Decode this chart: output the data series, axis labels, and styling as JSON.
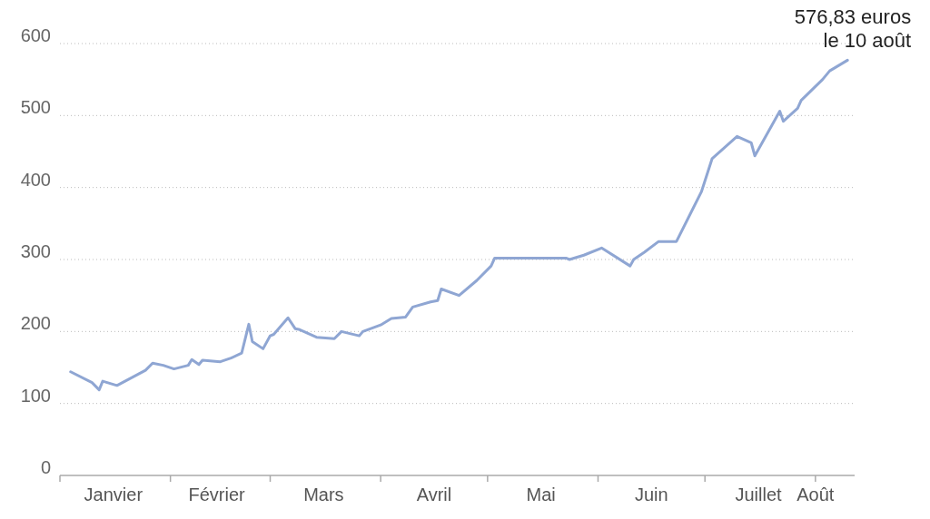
{
  "chart_data": {
    "type": "line",
    "x": [
      "--01-04",
      "--01-10",
      "--01-12",
      "--01-13",
      "--01-17",
      "--01-25",
      "--01-27",
      "--01-30",
      "--02-02",
      "--02-06",
      "--02-07",
      "--02-09",
      "--02-10",
      "--02-15",
      "--02-18",
      "--02-21",
      "--02-23",
      "--02-24",
      "--02-27",
      "--03-01",
      "--03-02",
      "--03-06",
      "--03-08",
      "--03-09",
      "--03-14",
      "--03-19",
      "--03-21",
      "--03-26",
      "--03-27",
      "--04-01",
      "--04-04",
      "--04-08",
      "--04-10",
      "--04-15",
      "--04-17",
      "--04-18",
      "--04-23",
      "--04-28",
      "--05-02",
      "--05-03",
      "--05-23",
      "--05-24",
      "--05-28",
      "--06-02",
      "--06-10",
      "--06-11",
      "--06-14",
      "--06-18",
      "--06-23",
      "--06-30",
      "--07-03",
      "--07-10",
      "--07-14",
      "--07-15",
      "--07-22",
      "--07-23",
      "--07-27",
      "--07-28",
      "--08-03",
      "--08-05",
      "--08-10"
    ],
    "series": [
      {
        "color": "#8fa6d3",
        "values": [
          144,
          129,
          119,
          131,
          125,
          146,
          156,
          153,
          148,
          153,
          161,
          154,
          160,
          158,
          163,
          170,
          210,
          186,
          176,
          194,
          196,
          219,
          204,
          203,
          192,
          190,
          200,
          194,
          200,
          209,
          218,
          220,
          234,
          241,
          243,
          259,
          250,
          271,
          291,
          302,
          302,
          300,
          306,
          316,
          291,
          300,
          310,
          325,
          325,
          394,
          440,
          471,
          462,
          444,
          506,
          492,
          510,
          521,
          550,
          562,
          576.83
        ]
      }
    ],
    "xlim": [
      "--01-01",
      "--08-12"
    ],
    "xticks": [
      {
        "value": "--01-01",
        "label": null
      },
      {
        "value": "--01-16",
        "label": "Janvier"
      },
      {
        "value": "--02-01",
        "label": null
      },
      {
        "value": "--02-14",
        "label": "Février"
      },
      {
        "value": "--03-01",
        "label": null
      },
      {
        "value": "--03-16",
        "label": "Mars"
      },
      {
        "value": "--04-01",
        "label": null
      },
      {
        "value": "--04-16",
        "label": "Avril"
      },
      {
        "value": "--05-01",
        "label": null
      },
      {
        "value": "--05-16",
        "label": "Mai"
      },
      {
        "value": "--06-01",
        "label": null
      },
      {
        "value": "--06-16",
        "label": "Juin"
      },
      {
        "value": "--07-01",
        "label": null
      },
      {
        "value": "--07-16",
        "label": "Juillet"
      },
      {
        "value": "--08-01",
        "label": null
      },
      {
        "value": "--08-01",
        "label": "Août"
      }
    ],
    "ylim": [
      0,
      600
    ],
    "yticks": [
      0,
      100,
      200,
      300,
      400,
      500,
      600
    ],
    "grid": "y",
    "line_style": "solid",
    "marker": "none",
    "annotations": [
      {
        "text": "576,83 euros\nle 10 août",
        "x": "--08-10",
        "y": 576.83
      }
    ]
  }
}
